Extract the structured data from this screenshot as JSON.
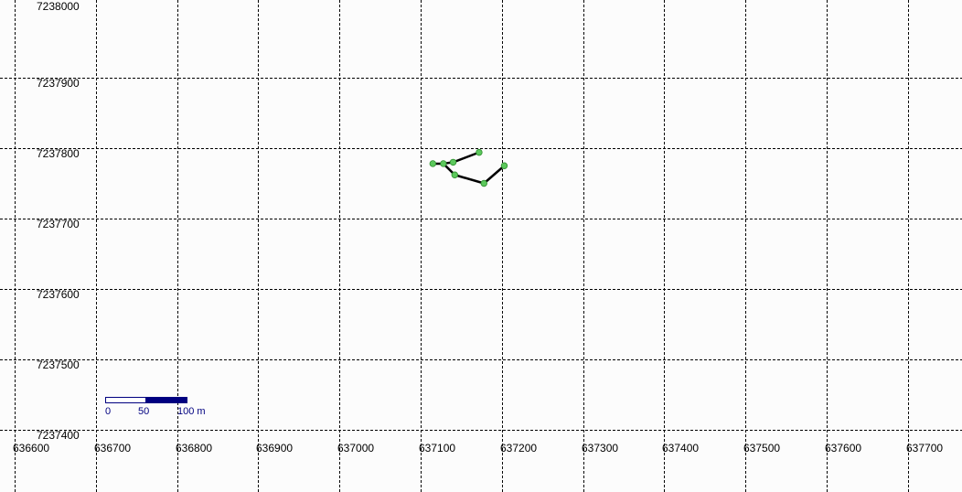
{
  "map": {
    "background": "#fcfcfc",
    "grid_color": "#000000",
    "y_axis": {
      "labels": [
        "7238000",
        "7237900",
        "7237800",
        "7237700",
        "7237600",
        "7237500",
        "7237400"
      ]
    },
    "x_axis": {
      "labels": [
        "636600",
        "636700",
        "636800",
        "636900",
        "637000",
        "637100",
        "637200",
        "637300",
        "637400",
        "637500",
        "637600",
        "637700"
      ]
    },
    "track": {
      "line_color": "#000000",
      "point_color": "#5cc85c",
      "points": [
        {
          "x": 637115,
          "y": 7237778
        },
        {
          "x": 637128,
          "y": 7237778
        },
        {
          "x": 637140,
          "y": 7237780
        },
        {
          "x": 637172,
          "y": 7237794
        },
        {
          "x": 637142,
          "y": 7237762
        },
        {
          "x": 637178,
          "y": 7237750
        },
        {
          "x": 637203,
          "y": 7237775
        }
      ],
      "segments": [
        [
          0,
          1
        ],
        [
          1,
          2
        ],
        [
          2,
          3
        ],
        [
          1,
          4
        ],
        [
          4,
          5
        ],
        [
          5,
          6
        ]
      ]
    },
    "scale_bar": {
      "labels": [
        "0",
        "50",
        "100 m"
      ],
      "colors": {
        "fill": "#000080",
        "empty": "#ffffff"
      }
    }
  }
}
